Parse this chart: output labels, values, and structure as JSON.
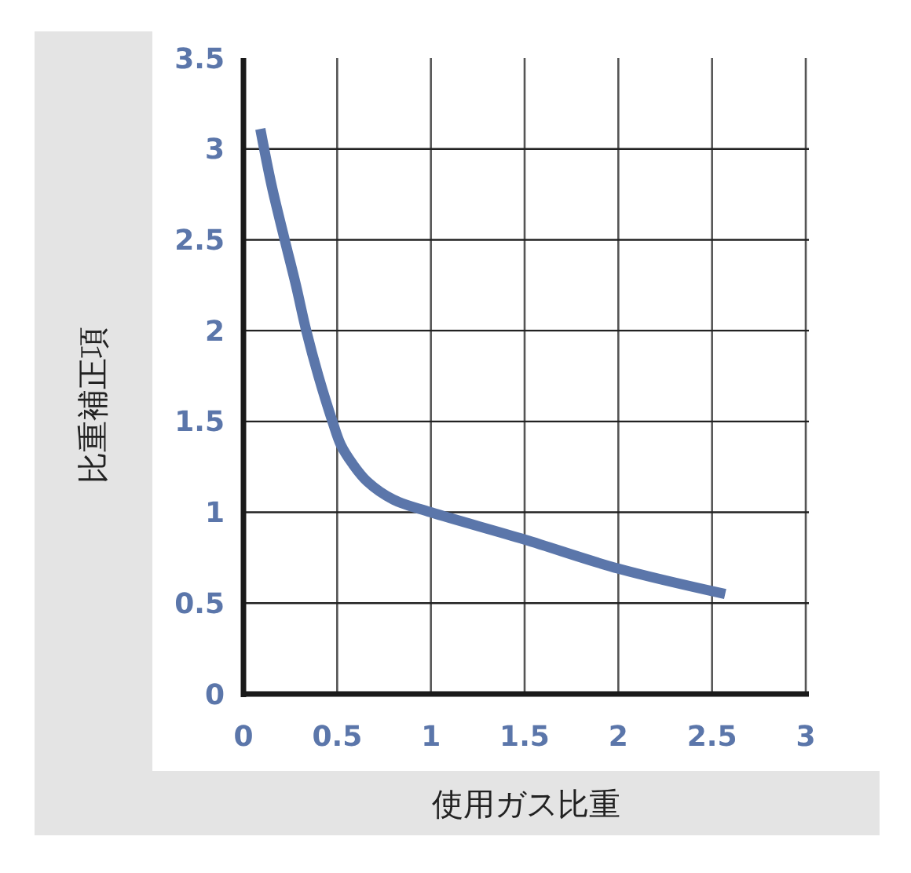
{
  "chart_data": {
    "type": "line",
    "xlabel": "使用ガス比重",
    "ylabel": "比重補正項",
    "x": [
      0.09,
      0.15,
      0.22,
      0.28,
      0.335,
      0.4,
      0.475,
      0.52,
      0.58,
      0.66,
      0.8,
      1.0,
      1.5,
      2.0,
      2.57
    ],
    "series": [
      {
        "color": "#5b76aa",
        "values": [
          3.11,
          2.8,
          2.5,
          2.25,
          2.0,
          1.75,
          1.5,
          1.37,
          1.27,
          1.17,
          1.07,
          1.0,
          0.85,
          0.69,
          0.55
        ]
      }
    ],
    "xlim": [
      0,
      3
    ],
    "ylim": [
      0,
      3.5
    ],
    "xticks": [
      0,
      0.5,
      1,
      1.5,
      2,
      2.5,
      3
    ],
    "yticks": [
      0,
      0.5,
      1,
      1.5,
      2,
      2.5,
      3,
      3.5
    ],
    "grid": true,
    "marker": "none",
    "line_style": "solid"
  }
}
